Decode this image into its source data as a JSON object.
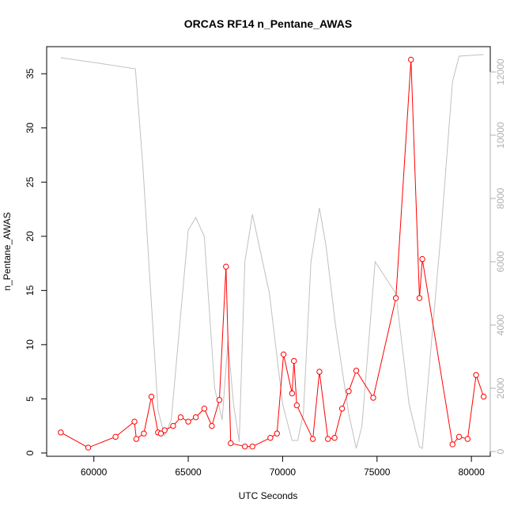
{
  "chart_data": {
    "type": "line",
    "title": "ORCAS RF14 n_Pentane_AWAS",
    "xlabel": "UTC Seconds",
    "ylabel": "n_Pentane_AWAS",
    "xlim": [
      57500,
      81000
    ],
    "ylim": [
      -0.3,
      37.5
    ],
    "y2lim": [
      -150,
      12800
    ],
    "xticks": [
      60000,
      65000,
      70000,
      75000,
      80000
    ],
    "yticks": [
      0,
      5,
      10,
      15,
      20,
      25,
      30,
      35
    ],
    "y2ticks": [
      0,
      2000,
      4000,
      6000,
      8000,
      10000,
      12000
    ],
    "colors": {
      "primary": "#ff0000",
      "secondary": "#c0c0c0",
      "axis": "#000000",
      "secondary_axis": "#b0b0b0"
    },
    "series": [
      {
        "axis": "left",
        "markers": "open-circle",
        "x": [
          58250,
          59700,
          61150,
          62150,
          62250,
          62650,
          63050,
          63400,
          63550,
          63750,
          64200,
          64600,
          65000,
          65400,
          65850,
          66250,
          66650,
          67000,
          67250,
          68000,
          68400,
          69350,
          69700,
          70050,
          70500,
          70600,
          70750,
          71600,
          71950,
          72400,
          72750,
          73150,
          73500,
          73900,
          74800,
          76000,
          76800,
          77250,
          77400,
          79000,
          79350,
          79800,
          80250,
          80650
        ],
        "y": [
          1.9,
          0.5,
          1.5,
          2.9,
          1.3,
          1.8,
          5.2,
          1.9,
          1.8,
          2.1,
          2.5,
          3.3,
          2.9,
          3.3,
          4.1,
          2.5,
          4.9,
          17.2,
          0.9,
          0.6,
          0.6,
          1.4,
          1.8,
          9.1,
          5.5,
          8.5,
          4.4,
          1.3,
          7.5,
          1.3,
          1.4,
          4.1,
          5.7,
          7.6,
          5.1,
          14.3,
          36.3,
          14.3,
          17.9,
          0.8,
          1.5,
          1.3,
          7.2,
          5.2
        ]
      },
      {
        "axis": "right",
        "markers": "none",
        "x": [
          58250,
          60000,
          62200,
          62600,
          63400,
          63750,
          64100,
          65000,
          65400,
          65850,
          66400,
          66800,
          67100,
          67400,
          67700,
          68000,
          68400,
          69300,
          70000,
          70500,
          70800,
          71100,
          71500,
          71950,
          72300,
          72800,
          73500,
          73900,
          74200,
          74900,
          76000,
          76700,
          77250,
          77400,
          78400,
          79000,
          79350,
          80650
        ],
        "y": [
          12450,
          12300,
          12100,
          9000,
          1300,
          500,
          1000,
          7000,
          7400,
          6800,
          2000,
          1000,
          3500,
          1500,
          300,
          6000,
          7500,
          5000,
          1500,
          350,
          350,
          1200,
          6000,
          7700,
          6500,
          4000,
          1200,
          100,
          800,
          6000,
          5000,
          1500,
          150,
          100,
          7000,
          11700,
          12500,
          12550
        ]
      }
    ]
  }
}
